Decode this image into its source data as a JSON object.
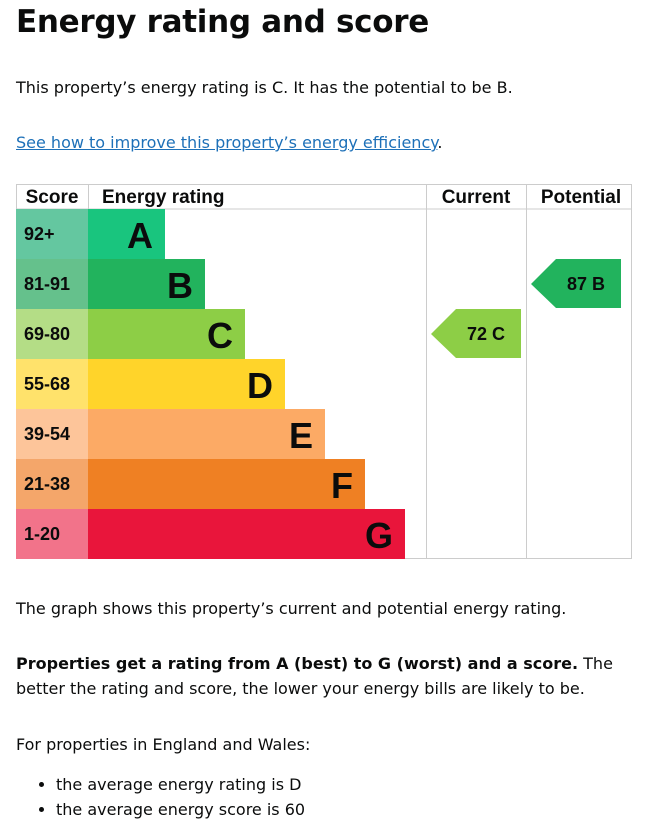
{
  "heading": "Energy rating and score",
  "intro": "This property’s energy rating is C. It has the potential to be B.",
  "link": "See how to improve this property’s energy efficiency",
  "link_suffix": ".",
  "chart_data": {
    "type": "table",
    "headers": [
      "Score",
      "Energy rating",
      "Current",
      "Potential"
    ],
    "bands": [
      {
        "score": "92+",
        "letter": "A",
        "color": "#19c57e",
        "score_color": "#64c7a0"
      },
      {
        "score": "81-91",
        "letter": "B",
        "color": "#22b35d",
        "score_color": "#65c18c"
      },
      {
        "score": "69-80",
        "letter": "C",
        "color": "#8dce46",
        "score_color": "#b4dd86"
      },
      {
        "score": "55-68",
        "letter": "D",
        "color": "#ffd42a",
        "score_color": "#ffe26b"
      },
      {
        "score": "39-54",
        "letter": "E",
        "color": "#fcaa65",
        "score_color": "#fdc59a"
      },
      {
        "score": "21-38",
        "letter": "F",
        "color": "#ef8023",
        "score_color": "#f4a66a"
      },
      {
        "score": "1-20",
        "letter": "G",
        "color": "#e9153b",
        "score_color": "#f2738a"
      }
    ],
    "current": {
      "score": 72,
      "letter": "C",
      "label": "72  C"
    },
    "potential": {
      "score": 87,
      "letter": "B",
      "label": "87  B"
    }
  },
  "graph_note": "The graph shows this property’s current and potential energy rating.",
  "rating_bold": "Properties get a rating from A (best) to G (worst) and a score.",
  "rating_rest": " The better the rating and score, the lower your energy bills are likely to be.",
  "average_intro": "For properties in England and Wales:",
  "averages": [
    "the average energy rating is D",
    "the average energy score is 60"
  ]
}
